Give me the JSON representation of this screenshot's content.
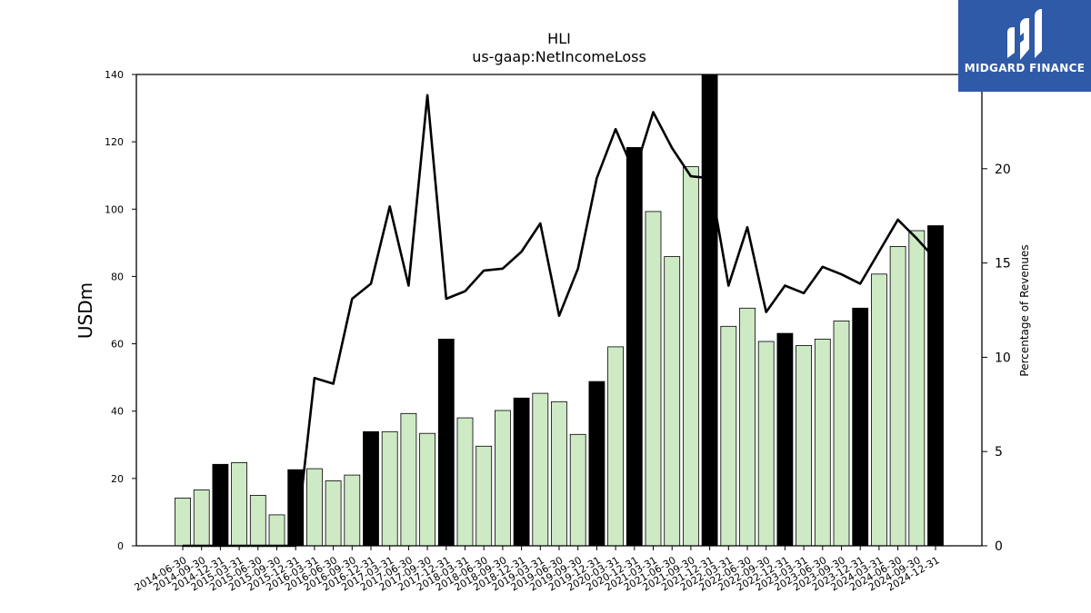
{
  "chart_data": {
    "type": "bar",
    "title": "HLI",
    "subtitle": "us-gaap:NetIncomeLoss",
    "ylabel": "USDm",
    "y2label": "Percentage of Revenues",
    "ylim": [
      0,
      140
    ],
    "y2lim": [
      0,
      25
    ],
    "yticks": [
      0,
      20,
      40,
      60,
      80,
      100,
      120,
      140
    ],
    "y2ticks": [
      0,
      5,
      10,
      15,
      20
    ],
    "categories": [
      "2014-06-30",
      "2014-09-30",
      "2014-12-31",
      "2015-03-31",
      "2015-06-30",
      "2015-09-30",
      "2015-12-31",
      "2016-03-31",
      "2016-06-30",
      "2016-09-30",
      "2016-12-31",
      "2017-03-31",
      "2017-06-30",
      "2017-09-30",
      "2017-12-31",
      "2018-03-31",
      "2018-06-30",
      "2018-09-30",
      "2018-12-31",
      "2019-03-31",
      "2019-06-30",
      "2019-09-30",
      "2019-12-31",
      "2020-03-31",
      "2020-12-31",
      "2021-03-31",
      "2021-06-30",
      "2021-09-30",
      "2021-12-31",
      "2022-03-31",
      "2022-06-30",
      "2022-09-30",
      "2022-12-31",
      "2023-03-31",
      "2023-06-30",
      "2023-09-30",
      "2023-12-31",
      "2024-03-31",
      "2024-06-30",
      "2024-09-30",
      "2024-12-31"
    ],
    "series": [
      {
        "type": "bar",
        "values": [
          14.2,
          16.6,
          24.2,
          24.7,
          15.0,
          9.2,
          22.6,
          22.9,
          19.3,
          21.0,
          33.9,
          33.9,
          39.3,
          33.4,
          61.4,
          38.0,
          29.6,
          40.2,
          43.9,
          45.3,
          42.8,
          33.1,
          48.8,
          59.1,
          118.3,
          99.3,
          85.9,
          112.6,
          140.0,
          65.2,
          70.6,
          60.7,
          63.1,
          59.5,
          61.4,
          66.8,
          70.6,
          80.7,
          88.9,
          93.6,
          95.1
        ],
        "highlight": [
          false,
          false,
          true,
          false,
          false,
          false,
          true,
          false,
          false,
          false,
          true,
          false,
          false,
          false,
          true,
          false,
          false,
          false,
          true,
          false,
          false,
          false,
          true,
          false,
          true,
          false,
          false,
          false,
          true,
          false,
          false,
          false,
          true,
          false,
          false,
          false,
          true,
          false,
          false,
          false,
          true
        ]
      },
      {
        "type": "line",
        "axis": "right",
        "values": [
          0,
          0,
          0,
          0,
          0,
          0,
          0,
          8.9,
          8.6,
          13.1,
          13.9,
          18.0,
          13.8,
          23.9,
          13.1,
          13.5,
          14.6,
          14.7,
          15.6,
          17.1,
          12.2,
          14.7,
          19.5,
          22.1,
          19.8,
          23.0,
          21.1,
          19.6,
          19.5,
          13.8,
          16.9,
          12.4,
          13.8,
          13.4,
          14.8,
          14.4,
          13.9,
          15.6,
          17.3,
          16.3,
          15.2
        ]
      }
    ],
    "bar_color": "#cdeac4",
    "highlight_color": "#000000",
    "line_color": "#000000"
  },
  "logo": {
    "text": "MIDGARD FINANCE",
    "color": "#2f5aa8"
  }
}
